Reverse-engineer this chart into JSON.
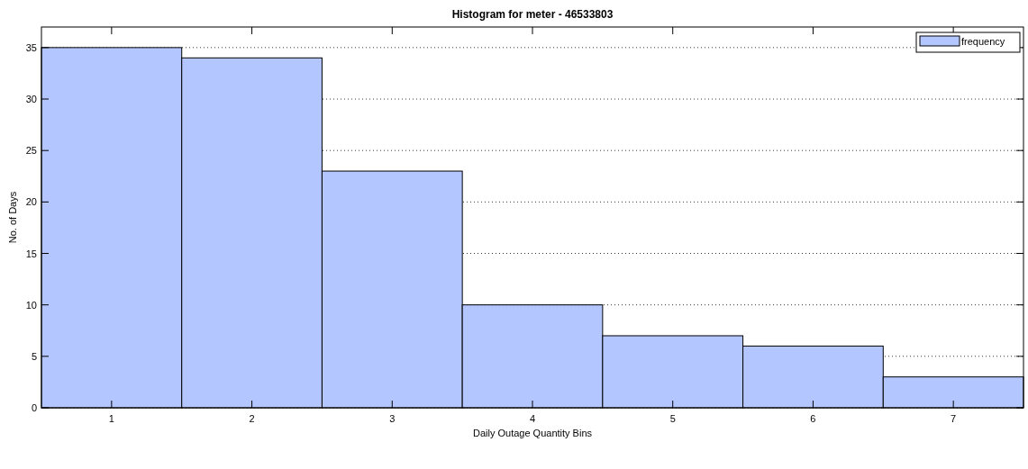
{
  "chart_data": {
    "type": "histogram",
    "title": "Histogram for meter - 46533803",
    "xlabel": "Daily Outage Quantity Bins",
    "ylabel": "No. of Days",
    "bins": [
      0.5,
      1.5,
      2.5,
      3.5,
      4.5,
      5.5,
      6.5,
      7.5
    ],
    "series": [
      {
        "name": "frequency",
        "color": "#b3c6ff",
        "values": [
          35,
          34,
          23,
          10,
          7,
          6,
          3
        ]
      }
    ],
    "xlim": [
      0.5,
      7.5
    ],
    "xticks": [
      1,
      2,
      3,
      4,
      5,
      6,
      7
    ],
    "ylim": [
      0,
      37
    ],
    "yticks": [
      0,
      5,
      10,
      15,
      20,
      25,
      30,
      35
    ],
    "grid": "y",
    "legend": "top right"
  }
}
